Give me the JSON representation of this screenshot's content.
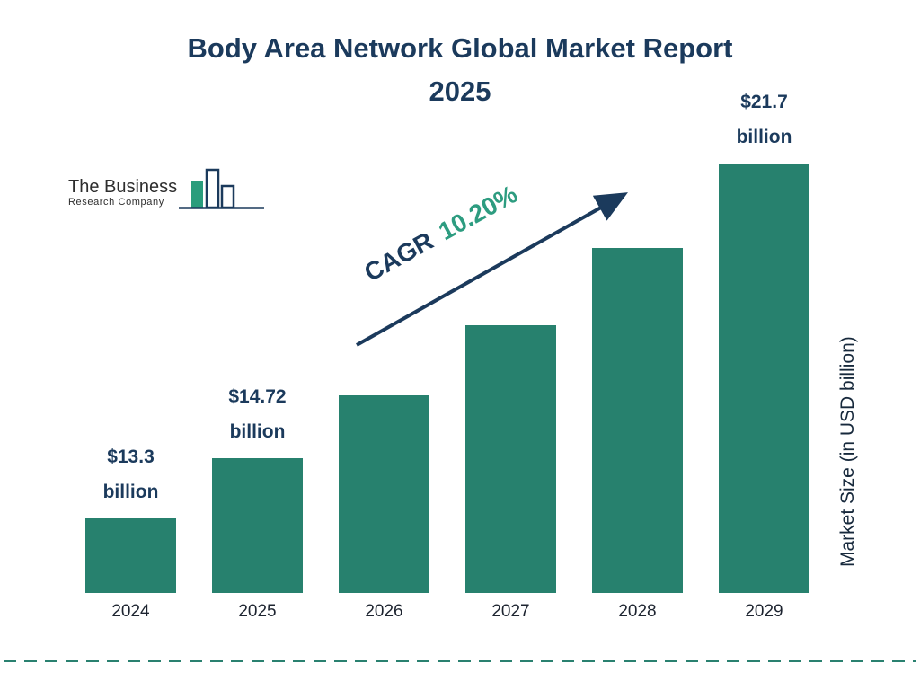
{
  "title": {
    "line1": "Body Area Network Global Market Report",
    "line2": "2025"
  },
  "logo": {
    "line1": "The Business",
    "line2": "Research Company"
  },
  "cagr": {
    "prefix": "CAGR",
    "value": "10.20%"
  },
  "colors": {
    "bar": "#27816e",
    "navy": "#1b3a5c",
    "cagr_value": "#2d9c80",
    "divider": "#2a8170",
    "logo_green": "#2a9d7c"
  },
  "chart_data": {
    "type": "bar",
    "title": "Body Area Network Global Market Report 2025",
    "categories": [
      "2024",
      "2025",
      "2026",
      "2027",
      "2028",
      "2029"
    ],
    "values": [
      13.3,
      14.72,
      16.22,
      17.88,
      19.7,
      21.7
    ],
    "value_labels": [
      {
        "amount": "$13.3",
        "unit": "billion"
      },
      {
        "amount": "$14.72",
        "unit": "billion"
      },
      null,
      null,
      null,
      {
        "amount": "$21.7",
        "unit": "billion"
      }
    ],
    "cagr": "10.20%",
    "xlabel": "",
    "ylabel": "Market Size (in USD billion)",
    "display_ylim": [
      11.53,
      21.7
    ],
    "baseline_truncated": true,
    "grid": false,
    "legend": false
  }
}
